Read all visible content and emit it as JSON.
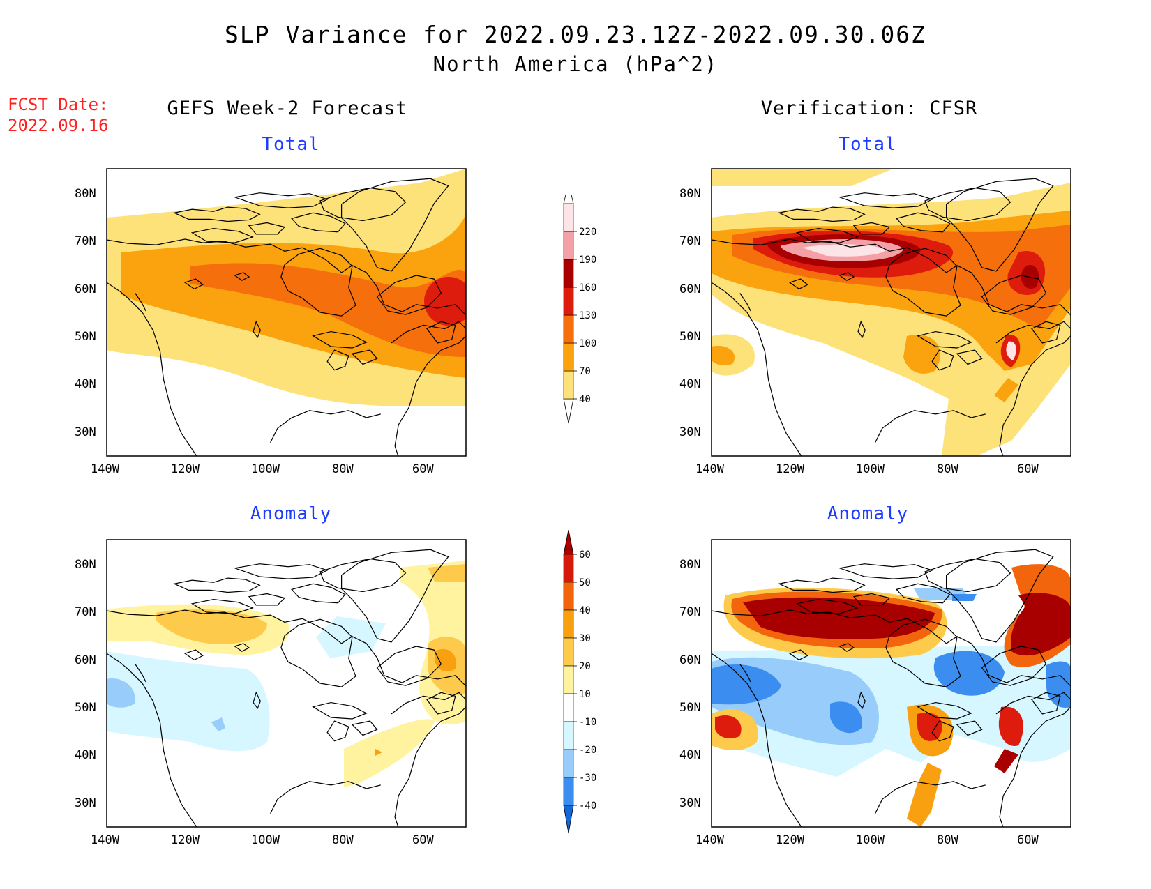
{
  "title": "SLP Variance for 2022.09.23.12Z-2022.09.30.06Z",
  "subtitle": "North America (hPa^2)",
  "fcst_date_label": "FCST Date:",
  "fcst_date_value": "2022.09.16",
  "left_column_title": "GEFS Week-2 Forecast",
  "right_column_title": "Verification: CFSR",
  "panels": {
    "forecast_total": {
      "title": "Total"
    },
    "verification_total": {
      "title": "Total"
    },
    "forecast_anomaly": {
      "title": "Anomaly"
    },
    "verification_anomaly": {
      "title": "Anomaly"
    }
  },
  "axes": {
    "lat_ticks": [
      "80N",
      "70N",
      "60N",
      "50N",
      "40N",
      "30N"
    ],
    "lon_ticks": [
      "140W",
      "120W",
      "100W",
      "80W",
      "60W"
    ]
  },
  "total_colorbar": {
    "levels": [
      "40",
      "70",
      "100",
      "130",
      "160",
      "190",
      "220"
    ],
    "colors": [
      "#fde27a",
      "#fba30f",
      "#f5700d",
      "#dd1c0d",
      "#a80000",
      "#f3a1a7",
      "#fde5e7"
    ]
  },
  "anomaly_colorbar": {
    "levels": [
      "-40",
      "-30",
      "-20",
      "-10",
      "10",
      "20",
      "30",
      "40",
      "50",
      "60"
    ],
    "colors": [
      "#1568d8",
      "#3b8ef0",
      "#98cdfb",
      "#d6f7ff",
      "#ffffff",
      "#fff3a0",
      "#fdca4b",
      "#f9a011",
      "#f3650c",
      "#d51a0b",
      "#a80000"
    ]
  }
}
